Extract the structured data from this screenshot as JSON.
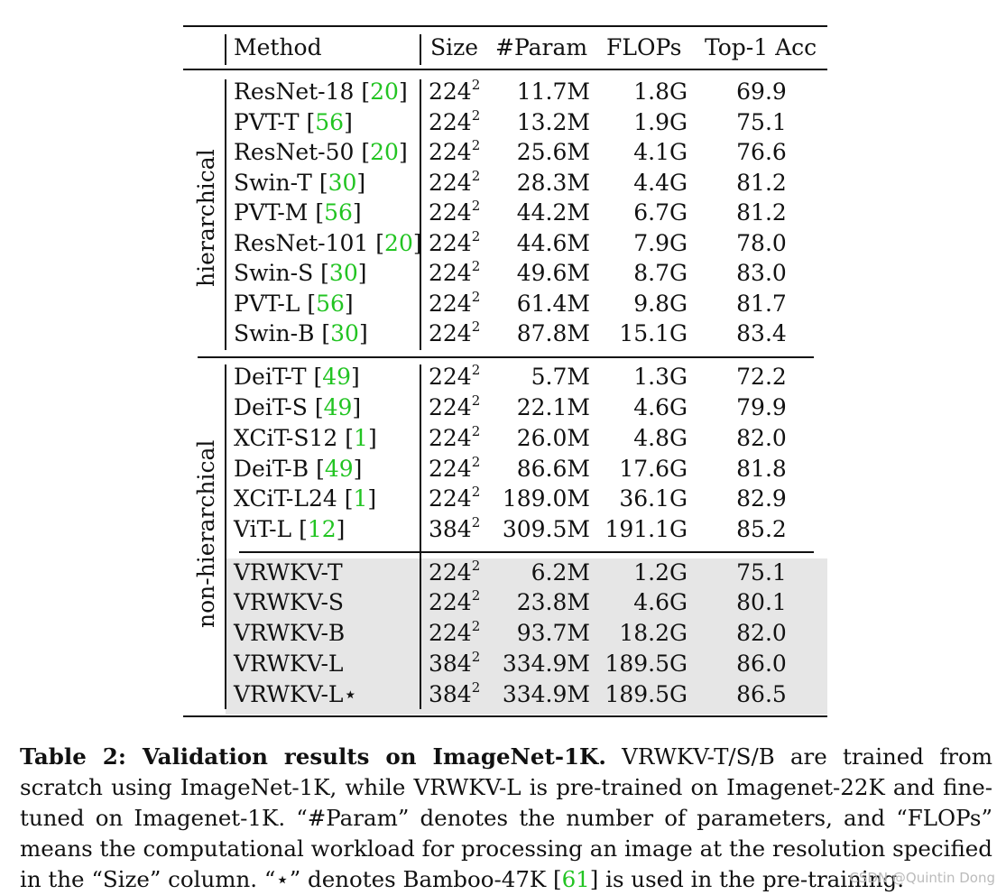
{
  "headers": {
    "method": "Method",
    "size": "Size",
    "param": "#Param",
    "flops": "FLOPs",
    "acc": "Top-1 Acc"
  },
  "groups": {
    "hier": "hierarchical",
    "nonhier": "non-hierarchical"
  },
  "rows": [
    {
      "name": "ResNet-18 ",
      "cite": "20",
      "size": "224",
      "param": "11.7M",
      "flops": "1.8G",
      "acc": "69.9"
    },
    {
      "name": "PVT-T ",
      "cite": "56",
      "size": "224",
      "param": "13.2M",
      "flops": "1.9G",
      "acc": "75.1"
    },
    {
      "name": "ResNet-50 ",
      "cite": "20",
      "size": "224",
      "param": "25.6M",
      "flops": "4.1G",
      "acc": "76.6"
    },
    {
      "name": "Swin-T ",
      "cite": "30",
      "size": "224",
      "param": "28.3M",
      "flops": "4.4G",
      "acc": "81.2"
    },
    {
      "name": "PVT-M ",
      "cite": "56",
      "size": "224",
      "param": "44.2M",
      "flops": "6.7G",
      "acc": "81.2"
    },
    {
      "name": "ResNet-101 ",
      "cite": "20",
      "size": "224",
      "param": "44.6M",
      "flops": "7.9G",
      "acc": "78.0"
    },
    {
      "name": "Swin-S ",
      "cite": "30",
      "size": "224",
      "param": "49.6M",
      "flops": "8.7G",
      "acc": "83.0"
    },
    {
      "name": "PVT-L ",
      "cite": "56",
      "size": "224",
      "param": "61.4M",
      "flops": "9.8G",
      "acc": "81.7"
    },
    {
      "name": "Swin-B ",
      "cite": "30",
      "size": "224",
      "param": "87.8M",
      "flops": "15.1G",
      "acc": "83.4"
    },
    {
      "name": "DeiT-T ",
      "cite": "49",
      "size": "224",
      "param": "5.7M",
      "flops": "1.3G",
      "acc": "72.2"
    },
    {
      "name": "DeiT-S ",
      "cite": "49",
      "size": "224",
      "param": "22.1M",
      "flops": "4.6G",
      "acc": "79.9"
    },
    {
      "name": "XCiT-S12 ",
      "cite": "1",
      "size": "224",
      "param": "26.0M",
      "flops": "4.8G",
      "acc": "82.0"
    },
    {
      "name": "DeiT-B ",
      "cite": "49",
      "size": "224",
      "param": "86.6M",
      "flops": "17.6G",
      "acc": "81.8"
    },
    {
      "name": "XCiT-L24 ",
      "cite": "1",
      "size": "224",
      "param": "189.0M",
      "flops": "36.1G",
      "acc": "82.9"
    },
    {
      "name": "ViT-L ",
      "cite": "12",
      "size": "384",
      "param": "309.5M",
      "flops": "191.1G",
      "acc": "85.2"
    },
    {
      "name": "VRWKV-T",
      "cite": "",
      "size": "224",
      "param": "6.2M",
      "flops": "1.2G",
      "acc": "75.1"
    },
    {
      "name": "VRWKV-S",
      "cite": "",
      "size": "224",
      "param": "23.8M",
      "flops": "4.6G",
      "acc": "80.1"
    },
    {
      "name": "VRWKV-B",
      "cite": "",
      "size": "224",
      "param": "93.7M",
      "flops": "18.2G",
      "acc": "82.0"
    },
    {
      "name": "VRWKV-L",
      "cite": "",
      "size": "384",
      "param": "334.9M",
      "flops": "189.5G",
      "acc": "86.0"
    },
    {
      "name": "VRWKV-L⋆",
      "cite": "",
      "size": "384",
      "param": "334.9M",
      "flops": "189.5G",
      "acc": "86.5"
    }
  ],
  "size_exp": "2",
  "caption": {
    "bold": "Table 2: Validation results on ImageNet-1K.",
    "text1": " VRWKV-T/S/B are trained from scratch using ImageNet-1K, while VRWKV-L is pre-trained on Imagenet-22K and fine-tuned on Imagenet-1K. “#Param” denotes the number of parameters, and “FLOPs” means the computational workload for processing an image at the resolution specified in the “Size” column. “⋆” denotes Bamboo-47K [",
    "cite": "61",
    "text2": "] is used in the pre-training."
  },
  "watermark": "CSDN @Quintin Dong"
}
